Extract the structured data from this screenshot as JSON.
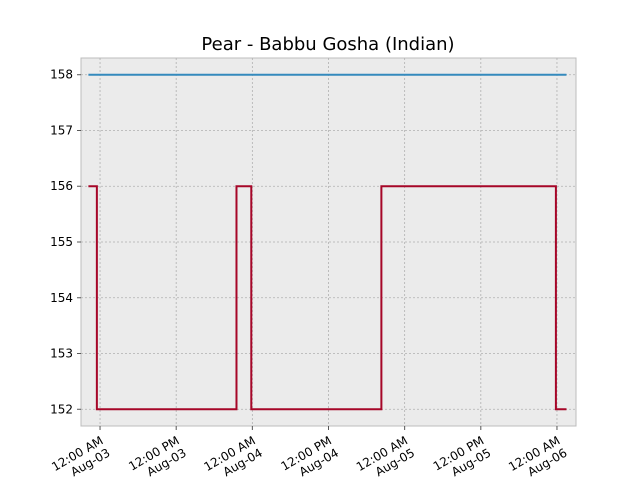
{
  "chart_data": {
    "type": "line",
    "title": "Pear - Babbu Gosha (Indian)",
    "xlabel": "",
    "ylabel": "",
    "x_axis_type": "datetime",
    "xlim": [
      "2023-08-02T21:00",
      "2023-08-06T03:00"
    ],
    "ylim": [
      151.7,
      158.3
    ],
    "grid": true,
    "background": "#ebebeb",
    "x_tick_labels": [
      {
        "at": "2023-08-03T00:00",
        "time": "12:00 AM",
        "date": "Aug-03"
      },
      {
        "at": "2023-08-03T12:00",
        "time": "12:00 PM",
        "date": "Aug-03"
      },
      {
        "at": "2023-08-04T00:00",
        "time": "12:00 AM",
        "date": "Aug-04"
      },
      {
        "at": "2023-08-04T12:00",
        "time": "12:00 PM",
        "date": "Aug-04"
      },
      {
        "at": "2023-08-05T00:00",
        "time": "12:00 AM",
        "date": "Aug-05"
      },
      {
        "at": "2023-08-05T12:00",
        "time": "12:00 PM",
        "date": "Aug-05"
      },
      {
        "at": "2023-08-06T00:00",
        "time": "12:00 AM",
        "date": "Aug-06"
      }
    ],
    "y_ticks": [
      152,
      153,
      154,
      155,
      156,
      157,
      158
    ],
    "series": [
      {
        "color": "#348abd",
        "step": "post",
        "x": [
          "2023-08-02T22:10",
          "2023-08-06T01:30"
        ],
        "y": [
          158,
          158
        ]
      },
      {
        "color": "#a60628",
        "step": "post",
        "x": [
          "2023-08-02T22:10",
          "2023-08-02T23:30",
          "2023-08-03T21:30",
          "2023-08-03T23:50",
          "2023-08-04T20:20",
          "2023-08-05T23:50",
          "2023-08-06T01:30"
        ],
        "y": [
          156,
          152,
          156,
          152,
          156,
          152,
          152
        ]
      }
    ]
  }
}
